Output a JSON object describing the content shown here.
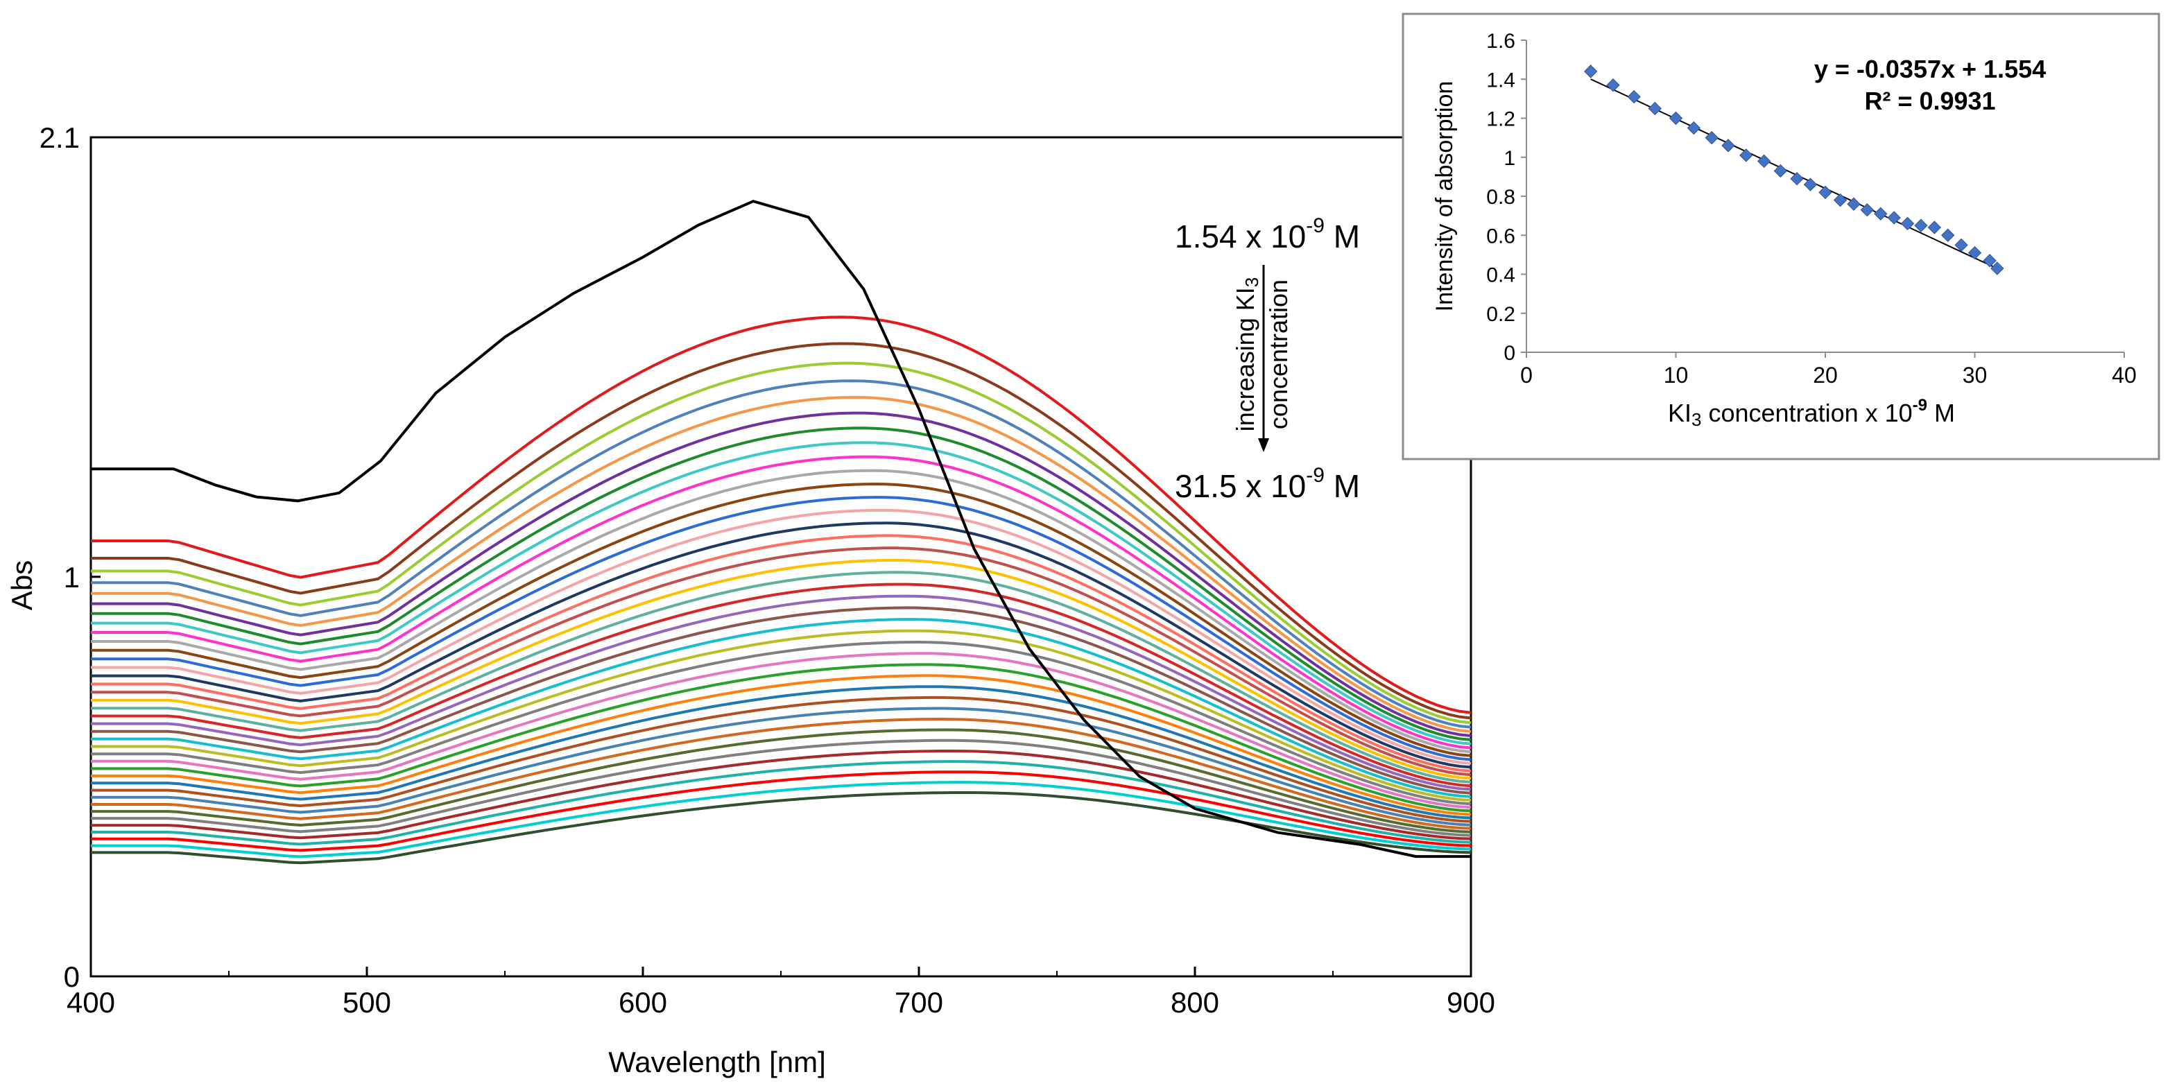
{
  "chart_data": [
    {
      "type": "line",
      "title": "",
      "xlabel": "Wavelength [nm]",
      "ylabel": "Abs",
      "xlim": [
        400,
        900
      ],
      "ylim": [
        0,
        2.1
      ],
      "x_ticks": [
        "400",
        "500",
        "600",
        "700",
        "800",
        "900"
      ],
      "x_tick_values": [
        400,
        500,
        600,
        700,
        800,
        900
      ],
      "y_ticks": [
        "0",
        "1",
        "2.1"
      ],
      "y_tick_values": [
        0,
        1,
        2.1
      ],
      "grid": false,
      "black_series": {
        "name": "1.54 x 10^-9 M (blank)",
        "color": "#000000",
        "points": [
          [
            400,
            1.27
          ],
          [
            420,
            1.27
          ],
          [
            430,
            1.27
          ],
          [
            445,
            1.23
          ],
          [
            460,
            1.2
          ],
          [
            475,
            1.19
          ],
          [
            490,
            1.21
          ],
          [
            505,
            1.29
          ],
          [
            525,
            1.46
          ],
          [
            550,
            1.6
          ],
          [
            575,
            1.71
          ],
          [
            600,
            1.8
          ],
          [
            620,
            1.88
          ],
          [
            640,
            1.94
          ],
          [
            660,
            1.9
          ],
          [
            680,
            1.72
          ],
          [
            700,
            1.42
          ],
          [
            720,
            1.07
          ],
          [
            740,
            0.82
          ],
          [
            760,
            0.64
          ],
          [
            780,
            0.5
          ],
          [
            800,
            0.42
          ],
          [
            830,
            0.36
          ],
          [
            860,
            0.33
          ],
          [
            880,
            0.3
          ],
          [
            900,
            0.3
          ]
        ]
      },
      "series_levels": {
        "count": 38,
        "plateau_range_at_400nm": [
          1.09,
          0.31
        ],
        "peak_range": [
          1.65,
          0.46
        ],
        "end_range_at_900nm": [
          0.66,
          0.31
        ],
        "description": "decreasing absorbance with increasing KI3 concentration"
      },
      "palette": [
        "#e31a1c",
        "#8b3a1a",
        "#9acd32",
        "#4f81bd",
        "#f79646",
        "#7030a0",
        "#1f8b2c",
        "#3fc8c8",
        "#ff33cc",
        "#a9a9a9",
        "#8b4513",
        "#2e6bd6",
        "#f4a6a6",
        "#1f3864",
        "#ff6f61",
        "#c0504d",
        "#ffc000",
        "#60b0a0",
        "#d62728",
        "#9467bd",
        "#8c564b",
        "#17becf",
        "#bcbd22",
        "#7f7f7f",
        "#e377c2",
        "#2ca02c",
        "#ff7f0e",
        "#1f77b4",
        "#b05020",
        "#4682b4",
        "#d2691e",
        "#556b2f",
        "#808080",
        "#a52a2a",
        "#20b2aa",
        "#ff0000",
        "#00ced1",
        "#2f4f2f"
      ],
      "annotations": {
        "top_conc": "1.54 x 10",
        "top_exp": "-9",
        "top_unit": " M",
        "bottom_conc": "31.5 x 10",
        "bottom_exp": "-9",
        "bottom_unit": " M",
        "arrow_label_1": "increasing KI",
        "arrow_label_1_sub": "3",
        "arrow_label_2": "concentration"
      }
    },
    {
      "type": "scatter",
      "title": "",
      "xlabel_main": "KI",
      "xlabel_sub": "3",
      "xlabel_rest": " concentration x 10",
      "xlabel_exp": "-9",
      "xlabel_unit": " M",
      "ylabel": "Intensity of absorption",
      "xlim": [
        0,
        40
      ],
      "ylim": [
        0,
        1.6
      ],
      "x_ticks": [
        "0",
        "10",
        "20",
        "30",
        "40"
      ],
      "x_tick_values": [
        0,
        10,
        20,
        30,
        40
      ],
      "y_ticks": [
        "0",
        "0.2",
        "0.4",
        "0.6",
        "0.8",
        "1",
        "1.2",
        "1.4",
        "1.6"
      ],
      "y_tick_values": [
        0,
        0.2,
        0.4,
        0.6,
        0.8,
        1.0,
        1.2,
        1.4,
        1.6
      ],
      "grid": false,
      "marker_color": "#4472c4",
      "trendline": {
        "slope": -0.0357,
        "intercept": 1.554,
        "x_range": [
          4.3,
          31.5
        ]
      },
      "equation": "y = -0.0357x + 1.554",
      "r2_label": "R² = 0.9931",
      "x": [
        4.3,
        5.8,
        7.2,
        8.6,
        10.0,
        11.2,
        12.4,
        13.5,
        14.7,
        15.9,
        17.0,
        18.1,
        19.0,
        20.0,
        21.0,
        21.9,
        22.8,
        23.7,
        24.6,
        25.5,
        26.4,
        27.3,
        28.2,
        29.1,
        30.0,
        31.0,
        31.5
      ],
      "y": [
        1.44,
        1.37,
        1.31,
        1.25,
        1.2,
        1.15,
        1.1,
        1.06,
        1.01,
        0.98,
        0.93,
        0.89,
        0.86,
        0.82,
        0.78,
        0.76,
        0.73,
        0.71,
        0.69,
        0.66,
        0.65,
        0.64,
        0.6,
        0.55,
        0.51,
        0.47,
        0.43
      ]
    }
  ]
}
